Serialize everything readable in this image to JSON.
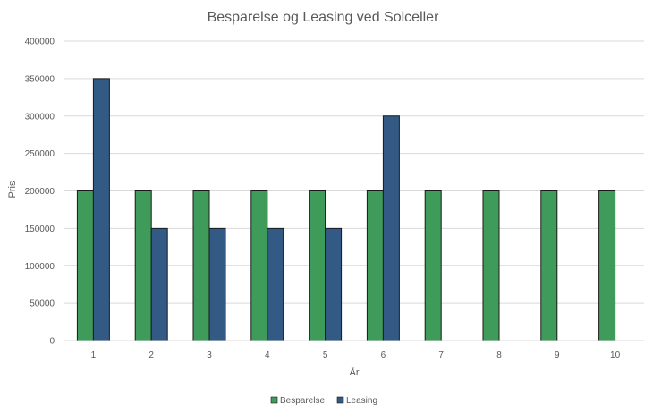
{
  "chart_data": {
    "type": "bar",
    "title": "Besparelse og Leasing ved Solceller",
    "xlabel": "År",
    "ylabel": "Pris",
    "categories": [
      "1",
      "2",
      "3",
      "4",
      "5",
      "6",
      "7",
      "8",
      "9",
      "10"
    ],
    "series": [
      {
        "name": "Besparelse",
        "color": "#3f9b5a",
        "values": [
          200000,
          200000,
          200000,
          200000,
          200000,
          200000,
          200000,
          200000,
          200000,
          200000
        ]
      },
      {
        "name": "Leasing",
        "color": "#335a84",
        "values": [
          350000,
          150000,
          150000,
          150000,
          150000,
          300000,
          null,
          null,
          null,
          null
        ]
      }
    ],
    "ylim": [
      0,
      400000
    ],
    "yticks": [
      "0",
      "50000",
      "100000",
      "150000",
      "200000",
      "250000",
      "300000",
      "350000",
      "400000"
    ],
    "grid": true,
    "legend_position": "bottom"
  }
}
